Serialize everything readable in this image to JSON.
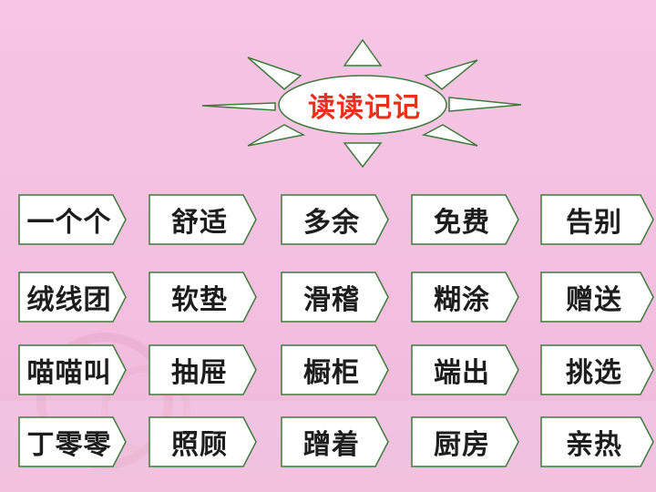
{
  "title": "读读记记",
  "colors": {
    "title": "#e8301a",
    "card_fill": "#ffffff",
    "card_border": "#3f7a3c",
    "background": "#f7c6e4"
  },
  "rows": [
    [
      "一个个",
      "舒适",
      "多余",
      "免费",
      "告别"
    ],
    [
      "绒线团",
      "软垫",
      "滑稽",
      "糊涂",
      "赠送"
    ],
    [
      "喵喵叫",
      "抽屉",
      "橱柜",
      "端出",
      "挑选"
    ],
    [
      "丁零零",
      "照顾",
      "蹭着",
      "厨房",
      "亲热"
    ]
  ]
}
